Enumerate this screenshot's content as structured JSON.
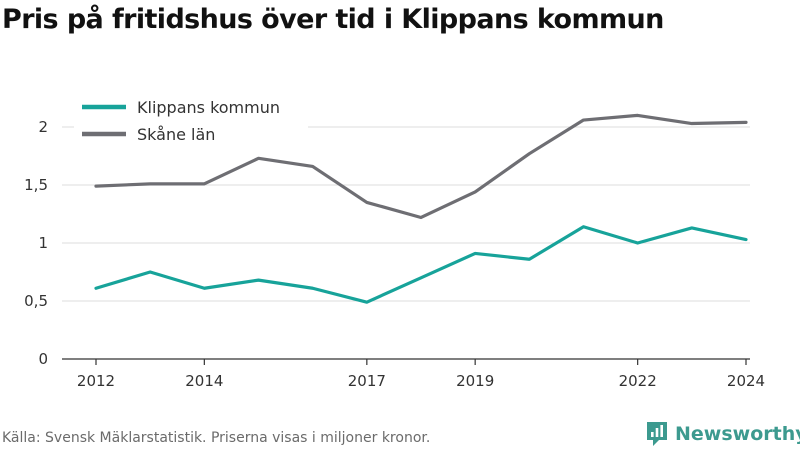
{
  "title": "Pris på fritidshus över tid i Klippans kommun",
  "source": "Källa: Svensk Mäklarstatistik. Priserna visas i miljoner kronor.",
  "brand": {
    "name": "Newsworthy",
    "icon": "bar-chart-logo-icon",
    "color": "#3c9a8f"
  },
  "chart_data": {
    "type": "line",
    "title": "Pris på fritidshus över tid i Klippans kommun",
    "xlabel": "",
    "ylabel": "",
    "x": [
      2012,
      2013,
      2014,
      2015,
      2016,
      2017,
      2018,
      2019,
      2020,
      2021,
      2022,
      2023,
      2024
    ],
    "x_tick_values": [
      2012,
      2014,
      2017,
      2019,
      2022,
      2024
    ],
    "x_tick_labels": [
      "2012",
      "2014",
      "2017",
      "2019",
      "2022",
      "2024"
    ],
    "y_tick_values": [
      0,
      0.5,
      1,
      1.5,
      2
    ],
    "y_tick_labels": [
      "0",
      "0,5",
      "1",
      "1,5",
      "2"
    ],
    "ylim": [
      0,
      2.3
    ],
    "xlim": [
      2012,
      2024
    ],
    "grid": true,
    "legend_position": "top-left",
    "series": [
      {
        "name": "Klippans kommun",
        "color": "#17a39a",
        "values": [
          0.61,
          0.75,
          0.61,
          0.68,
          0.61,
          0.49,
          0.7,
          0.91,
          0.86,
          1.14,
          1.0,
          1.13,
          1.03
        ]
      },
      {
        "name": "Skåne län",
        "color": "#6e6e73",
        "values": [
          1.49,
          1.51,
          1.51,
          1.73,
          1.66,
          1.35,
          1.22,
          1.44,
          1.77,
          2.06,
          2.1,
          2.03,
          2.04
        ]
      }
    ]
  }
}
